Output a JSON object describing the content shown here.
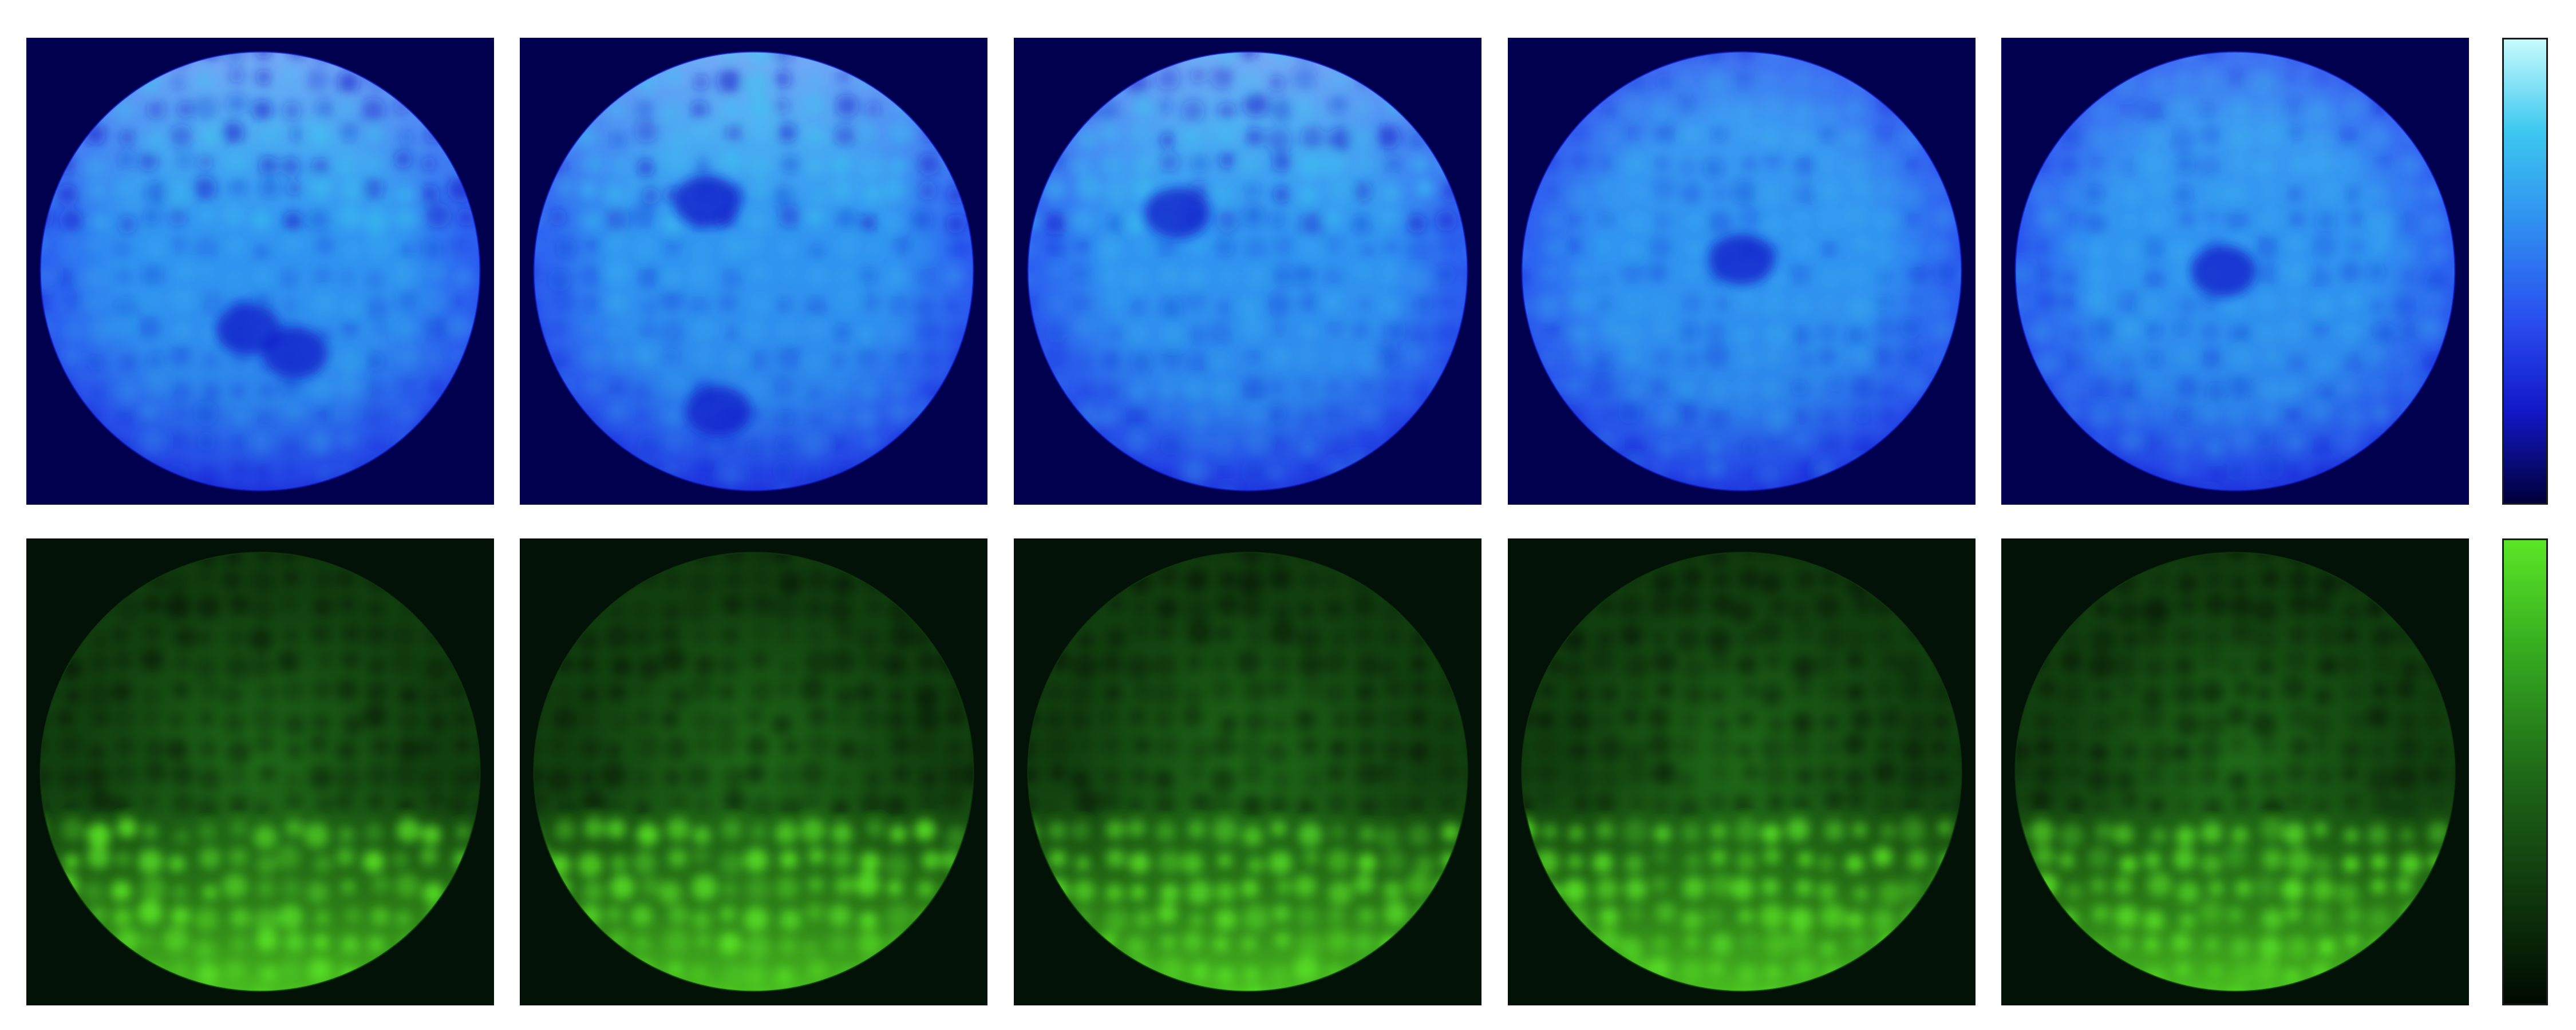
{
  "figure": {
    "rows": [
      {
        "id": "blue",
        "channel_color": "#1e3cff",
        "background": "#00004f",
        "colormap": [
          "#00003a",
          "#1218c8",
          "#2a50f0",
          "#2f8ef0",
          "#3cc7ef",
          "#c6fbfd"
        ],
        "panels": 5
      },
      {
        "id": "green",
        "channel_color": "#3fd21a",
        "background": "#021206",
        "colormap": [
          "#000a00",
          "#0f3a0d",
          "#1f6a18",
          "#33a81f",
          "#5ae626"
        ],
        "panels": 5
      }
    ]
  }
}
